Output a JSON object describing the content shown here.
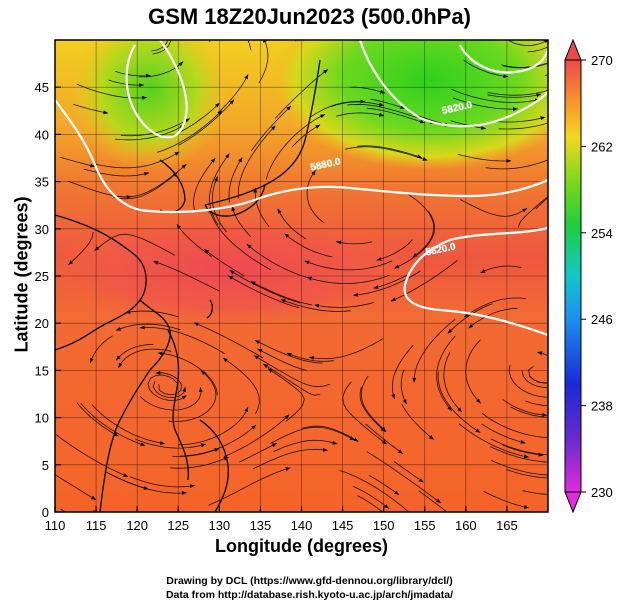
{
  "title": "GSM 18Z20Jun2023 (500.0hPa)",
  "x_axis": {
    "label": "Longitude (degrees)",
    "ticks": [
      "110",
      "115",
      "120",
      "125",
      "130",
      "135",
      "140",
      "145",
      "150",
      "155",
      "160",
      "165"
    ],
    "range": [
      110,
      170
    ]
  },
  "y_axis": {
    "label": "Latitude  (degrees)",
    "ticks": [
      "0",
      "5",
      "10",
      "15",
      "20",
      "25",
      "30",
      "35",
      "40",
      "45"
    ],
    "range": [
      0,
      50
    ]
  },
  "colorbar": {
    "ticks": [
      "270",
      "262",
      "254",
      "246",
      "238",
      "230"
    ],
    "range": [
      230,
      270
    ]
  },
  "contour_labels": [
    {
      "text": "5880.0",
      "lon": 143,
      "lat": 36.5
    },
    {
      "text": "5820.0",
      "lon": 157,
      "lat": 27.5
    },
    {
      "text": "5820.0",
      "lon": 159,
      "lat": 42.5
    }
  ],
  "credits": {
    "line1": "Drawing by DCL (https://www.gfd-dennou.org/library/dcl/)",
    "line2": "Data from http://database.rish.kyoto-u.ac.jp/arch/jmadata/"
  },
  "colors": {
    "warm_core": "#ef4f50",
    "orange": "#f68a2a",
    "yellow": "#f5c51e",
    "green": "#33d21e",
    "contour": "#ffffff",
    "streamline": "#000000"
  }
}
